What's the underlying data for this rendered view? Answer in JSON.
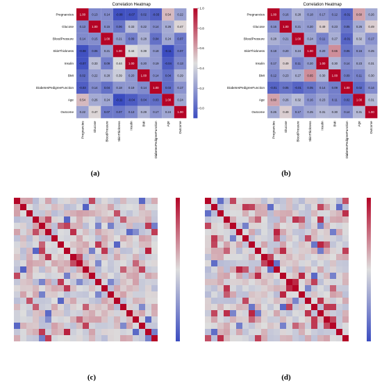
{
  "captions": [
    "(a)",
    "(b)",
    "(c)",
    "(d)"
  ],
  "chart_data": [
    {
      "type": "heatmap",
      "title": "Correlation Heatmap",
      "labels": [
        "Pregnancies",
        "Glucose",
        "BloodPressure",
        "SkinThickness",
        "Insulin",
        "BMI",
        "DiabetesPedigreeFunction",
        "Age",
        "Outcome"
      ],
      "matrix": [
        [
          1.0,
          0.13,
          0.14,
          -0.08,
          -0.07,
          0.02,
          -0.03,
          0.54,
          0.22
        ],
        [
          0.13,
          1.0,
          0.15,
          0.06,
          0.33,
          0.22,
          0.14,
          0.26,
          0.47
        ],
        [
          0.14,
          0.15,
          1.0,
          0.21,
          0.09,
          0.28,
          0.04,
          0.24,
          0.07
        ],
        [
          -0.08,
          0.06,
          0.21,
          1.0,
          0.44,
          0.39,
          0.18,
          -0.11,
          0.07
        ],
        [
          -0.07,
          0.33,
          0.09,
          0.44,
          1.0,
          0.2,
          0.19,
          -0.04,
          0.13
        ],
        [
          0.02,
          0.22,
          0.28,
          0.39,
          0.2,
          1.0,
          0.14,
          0.04,
          0.29
        ],
        [
          -0.03,
          0.14,
          0.04,
          0.18,
          0.19,
          0.14,
          1.0,
          0.03,
          0.17
        ],
        [
          0.54,
          0.26,
          0.24,
          -0.11,
          -0.04,
          0.04,
          0.03,
          1.0,
          0.24
        ],
        [
          0.22,
          0.47,
          0.07,
          0.07,
          0.13,
          0.29,
          0.17,
          0.24,
          1.0
        ]
      ],
      "colorbar": {
        "min": -0.1,
        "max": 1.0,
        "ticks": [
          "1.0",
          "0.8",
          "0.6",
          "0.4",
          "0.2",
          "0.0"
        ]
      },
      "colors": {
        "low": "#3b4cc0",
        "mid": "#dddddd",
        "high": "#b40426"
      }
    },
    {
      "type": "heatmap",
      "title": "Correlation Heatmap",
      "labels": [
        "Pregnancies",
        "Glucose",
        "BloodPressure",
        "SkinThickness",
        "Insulin",
        "BMI",
        "DiabetesPedigreeFunction",
        "Age",
        "Outcome"
      ],
      "matrix": [
        [
          1.0,
          0.16,
          0.28,
          0.18,
          0.17,
          0.12,
          -0.01,
          0.6,
          0.26
        ],
        [
          0.16,
          1.0,
          0.21,
          0.2,
          0.49,
          0.23,
          0.05,
          0.26,
          0.49
        ],
        [
          0.28,
          0.21,
          1.0,
          0.24,
          0.11,
          0.27,
          -0.01,
          0.32,
          0.17
        ],
        [
          0.18,
          0.2,
          0.24,
          1.0,
          0.2,
          0.65,
          0.05,
          0.16,
          0.25
        ],
        [
          0.17,
          0.49,
          0.11,
          0.2,
          1.0,
          0.3,
          0.14,
          0.23,
          0.31
        ],
        [
          0.12,
          0.23,
          0.27,
          0.65,
          0.3,
          1.0,
          0.09,
          0.11,
          0.3
        ],
        [
          -0.01,
          0.05,
          -0.01,
          0.05,
          0.14,
          0.09,
          1.0,
          0.02,
          0.14
        ],
        [
          0.6,
          0.26,
          0.32,
          0.16,
          0.23,
          0.11,
          0.02,
          1.0,
          0.31
        ],
        [
          0.26,
          0.49,
          0.17,
          0.25,
          0.31,
          0.3,
          0.14,
          0.31,
          1.0
        ]
      ],
      "colorbar": {
        "min": -0.1,
        "max": 1.0,
        "ticks": [
          "1.0",
          "0.8",
          "0.6",
          "0.4",
          "0.2",
          "0.0"
        ]
      },
      "colors": {
        "low": "#3b4cc0",
        "mid": "#dddddd",
        "high": "#b40426"
      }
    },
    {
      "type": "heatmap",
      "size": 23,
      "matrix": [],
      "colorbar": {
        "min": -1.0,
        "max": 1.0
      },
      "colors": {
        "low": "#3b4cc0",
        "mid": "#dddddd",
        "high": "#b40426"
      }
    },
    {
      "type": "heatmap",
      "size": 23,
      "matrix": [],
      "colorbar": {
        "min": -1.0,
        "max": 1.0
      },
      "colors": {
        "low": "#3b4cc0",
        "mid": "#dddddd",
        "high": "#b40426"
      }
    }
  ]
}
